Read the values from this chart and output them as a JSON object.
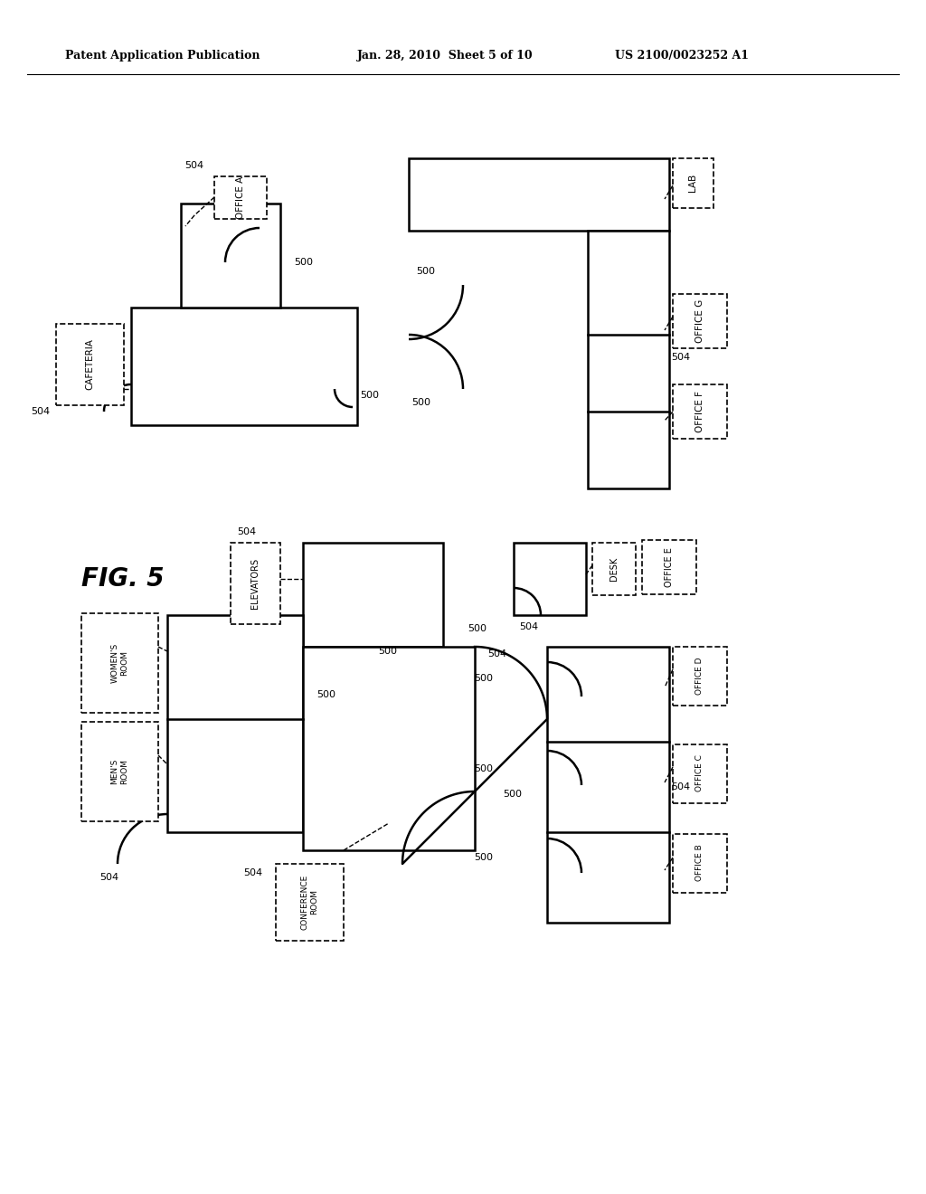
{
  "title_left": "Patent Application Publication",
  "title_center": "Jan. 28, 2010  Sheet 5 of 10",
  "title_right": "US 2100/0023252 A1",
  "fig_label": "FIG. 5",
  "background_color": "#ffffff",
  "line_color": "#000000"
}
